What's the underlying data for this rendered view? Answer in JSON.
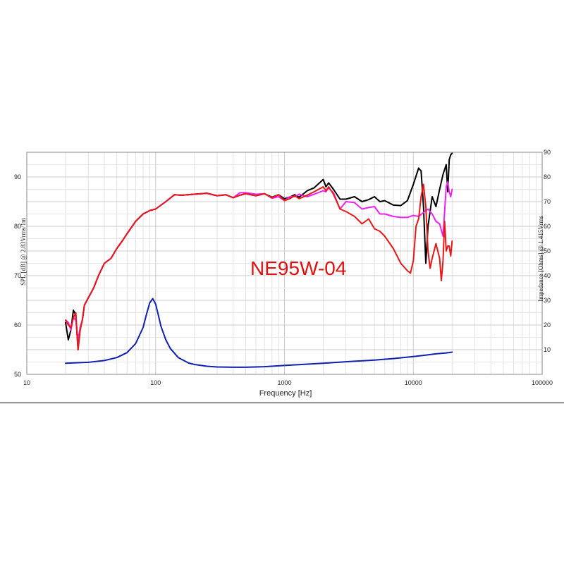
{
  "chart_data": {
    "type": "line",
    "annotation": "NE95W-04",
    "xlabel": "Frequency [Hz]",
    "ylabel_left": "SPL [dB] @ 2.83Vrms/1m",
    "ylabel_right": "Impedance [Ohms] @ 1.415Vrms",
    "x_scale": "log",
    "xlim": [
      10,
      100000
    ],
    "ylim_left": [
      50,
      95
    ],
    "ylim_right": [
      0,
      90
    ],
    "x_ticks": [
      10,
      100,
      1000,
      10000,
      100000
    ],
    "x_tick_labels": [
      "10",
      "100",
      "1000",
      "10000",
      "100000"
    ],
    "y_ticks_left": [
      50,
      60,
      70,
      80,
      90
    ],
    "y_ticks_right": [
      0,
      10,
      20,
      30,
      40,
      50,
      60,
      70,
      80,
      90
    ],
    "grid": true,
    "series": [
      {
        "color": "#000000",
        "axis": "left",
        "x": [
          20,
          21,
          22,
          23,
          24,
          25,
          26,
          27,
          28,
          30,
          33,
          36,
          40,
          45,
          50,
          55,
          60,
          70,
          80,
          90,
          100,
          120,
          140,
          160,
          200,
          250,
          300,
          350,
          400,
          450,
          500,
          600,
          700,
          800,
          900,
          1000,
          1100,
          1200,
          1300,
          1500,
          1700,
          2000,
          2100,
          2200,
          2400,
          2700,
          3000,
          3500,
          4000,
          4500,
          5000,
          5500,
          6000,
          7000,
          8000,
          9000,
          10000,
          11000,
          11500,
          12000,
          12500,
          13000,
          14000,
          15000,
          16000,
          17000,
          18000,
          18500,
          19000,
          19500,
          20000
        ],
        "y": [
          60.5,
          57.0,
          59.0,
          63.0,
          62.0,
          55.0,
          59.5,
          61.0,
          64.0,
          65.5,
          67.5,
          70.0,
          72.5,
          73.5,
          75.5,
          77.0,
          78.5,
          81.0,
          82.5,
          83.2,
          83.5,
          85.0,
          86.4,
          86.3,
          86.5,
          86.7,
          86.2,
          86.4,
          85.8,
          86.3,
          86.6,
          86.2,
          86.6,
          85.9,
          86.4,
          85.6,
          85.9,
          86.4,
          85.9,
          87.2,
          87.8,
          89.5,
          88.0,
          88.8,
          87.5,
          85.5,
          85.5,
          86.0,
          85.0,
          85.4,
          86.0,
          85.0,
          85.2,
          84.3,
          84.2,
          85.2,
          88.5,
          91.8,
          91.2,
          84.0,
          72.5,
          80.0,
          86.0,
          84.0,
          87.5,
          90.5,
          92.5,
          87.0,
          93.5,
          94.5,
          94.8
        ]
      },
      {
        "color": "#ee22ee",
        "axis": "left",
        "x": [
          20,
          21,
          22,
          23,
          24,
          25,
          26,
          27,
          28,
          30,
          33,
          36,
          40,
          45,
          50,
          55,
          60,
          70,
          80,
          90,
          100,
          120,
          140,
          160,
          200,
          250,
          300,
          350,
          400,
          450,
          500,
          600,
          700,
          800,
          900,
          1000,
          1100,
          1200,
          1300,
          1500,
          1700,
          2000,
          2100,
          2200,
          2400,
          2700,
          3000,
          3500,
          4000,
          4500,
          5000,
          5500,
          6000,
          7000,
          8000,
          9000,
          10000,
          11000,
          12000,
          13000,
          14000,
          15000,
          16000,
          17000,
          17500,
          18000,
          18500,
          19000,
          19500,
          20000
        ],
        "y": [
          61.0,
          60.5,
          59.0,
          61.5,
          61.0,
          57.0,
          59.5,
          61.0,
          64.0,
          65.5,
          67.5,
          70.0,
          72.5,
          73.5,
          75.5,
          77.0,
          78.5,
          81.0,
          82.5,
          83.2,
          83.5,
          85.0,
          86.4,
          86.3,
          86.5,
          86.7,
          86.2,
          86.4,
          85.8,
          86.8,
          86.8,
          86.5,
          86.6,
          85.7,
          86.0,
          85.2,
          86.0,
          86.0,
          86.5,
          86.0,
          86.5,
          87.2,
          87.0,
          87.8,
          86.8,
          83.5,
          85.0,
          84.8,
          83.5,
          83.8,
          84.0,
          82.5,
          82.5,
          82.0,
          81.8,
          81.8,
          82.2,
          82.0,
          82.8,
          83.5,
          82.5,
          81.0,
          80.5,
          78.0,
          83.0,
          88.0,
          89.0,
          87.0,
          86.0,
          87.5
        ]
      },
      {
        "color": "#e81818",
        "axis": "left",
        "x": [
          20,
          21,
          22,
          23,
          24,
          25,
          26,
          27,
          28,
          30,
          33,
          36,
          40,
          45,
          50,
          55,
          60,
          70,
          80,
          90,
          100,
          120,
          140,
          160,
          200,
          250,
          300,
          350,
          400,
          450,
          500,
          600,
          700,
          800,
          900,
          1000,
          1100,
          1200,
          1300,
          1500,
          1700,
          2000,
          2100,
          2200,
          2400,
          2700,
          3000,
          3500,
          4000,
          4500,
          5000,
          5500,
          6000,
          7000,
          8000,
          9000,
          9500,
          10000,
          10500,
          11000,
          11500,
          12000,
          12500,
          13000,
          13500,
          14000,
          15000,
          16000,
          16500,
          17000,
          17500,
          18000,
          18500,
          19000,
          19500,
          20000
        ],
        "y": [
          61.0,
          60.0,
          59.5,
          61.5,
          62.5,
          55.0,
          59.0,
          61.0,
          64.0,
          65.5,
          67.5,
          70.0,
          72.5,
          73.5,
          75.5,
          77.0,
          78.5,
          81.0,
          82.5,
          83.2,
          83.5,
          85.0,
          86.4,
          86.3,
          86.5,
          86.7,
          86.2,
          86.4,
          85.8,
          86.3,
          86.6,
          86.2,
          86.6,
          85.8,
          86.4,
          85.2,
          85.6,
          86.2,
          85.6,
          86.3,
          87.0,
          88.0,
          87.2,
          88.0,
          86.5,
          83.5,
          83.0,
          82.0,
          80.5,
          81.5,
          79.5,
          79.0,
          78.0,
          75.5,
          72.5,
          71.0,
          70.5,
          73.0,
          80.0,
          81.5,
          86.0,
          88.5,
          84.0,
          75.0,
          71.5,
          73.5,
          76.5,
          73.5,
          69.0,
          73.0,
          81.0,
          75.0,
          76.0,
          76.0,
          74.0,
          77.0
        ]
      },
      {
        "color": "#1020b0",
        "axis": "right",
        "x": [
          20,
          30,
          40,
          50,
          60,
          70,
          80,
          85,
          90,
          95,
          100,
          105,
          110,
          120,
          130,
          150,
          180,
          200,
          250,
          300,
          400,
          500,
          700,
          1000,
          2000,
          3000,
          5000,
          7000,
          10000,
          12000,
          15000,
          18000,
          20000
        ],
        "y": [
          4.5,
          4.9,
          5.6,
          6.8,
          8.8,
          12.5,
          19.0,
          24.5,
          29.0,
          30.7,
          28.5,
          24.0,
          19.5,
          14.0,
          10.5,
          6.8,
          4.6,
          4.0,
          3.3,
          3.0,
          2.9,
          2.9,
          3.1,
          3.6,
          4.5,
          5.1,
          5.8,
          6.4,
          7.2,
          7.7,
          8.3,
          8.7,
          9.0
        ]
      }
    ]
  }
}
